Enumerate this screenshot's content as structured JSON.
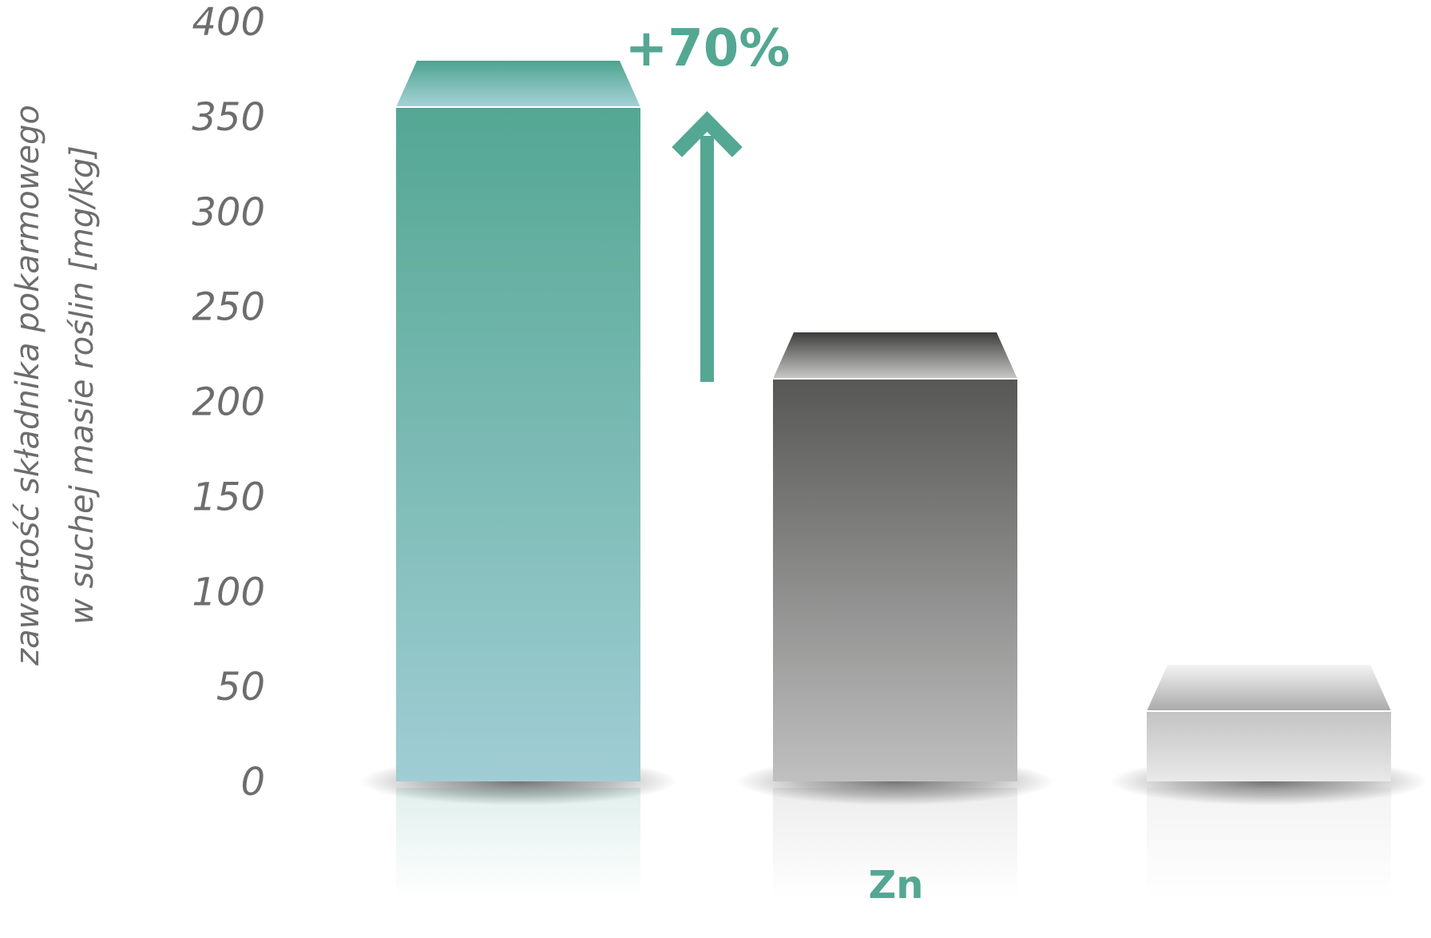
{
  "chart_data": {
    "type": "bar",
    "title": "",
    "ylabel_lines": [
      "zawartość składnika pokarmowego",
      "w suchej masie roślin [mg/kg]"
    ],
    "xlabel": "Zn",
    "ylim": [
      0,
      400
    ],
    "yticks": [
      "0",
      "50",
      "100",
      "150",
      "200",
      "250",
      "300",
      "350",
      "400"
    ],
    "series": [
      {
        "values": [
          355,
          212,
          37
        ]
      }
    ],
    "colors": {
      "bar1": [
        "#54a793",
        "#a0cdd4"
      ],
      "bar2": [
        "#575756",
        "#bfc0bf"
      ],
      "bar3": [
        "#c2c3c2",
        "#e9e9e9"
      ],
      "accent": "#54a793",
      "tick": "#6d6d6d"
    },
    "annotation": {
      "text": "+70%",
      "icon": "arrow-up-icon"
    },
    "grid": false,
    "legend": "none"
  }
}
